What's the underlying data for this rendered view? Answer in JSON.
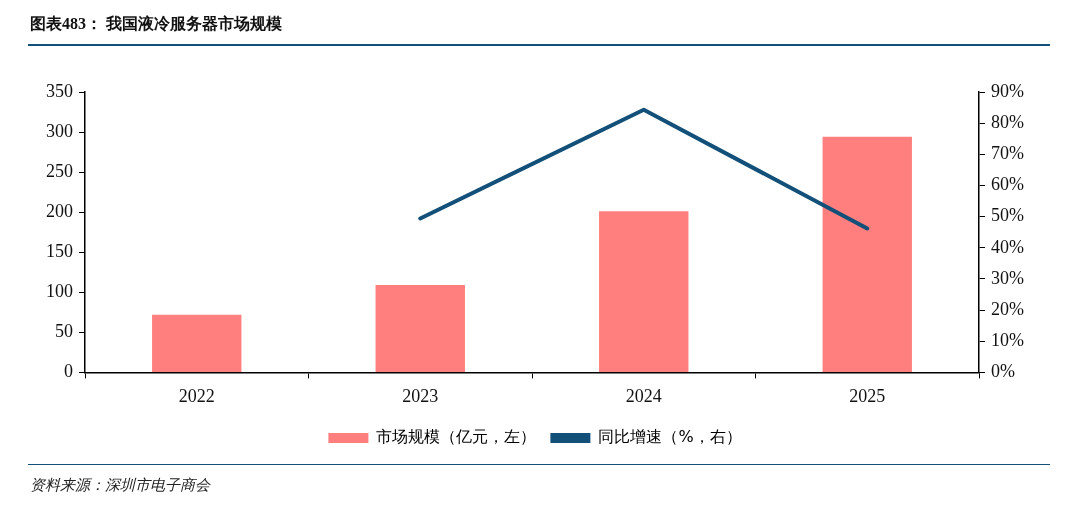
{
  "chart_data": {
    "type": "bar",
    "title": "图表483：  我国液冷服务器市场规模",
    "categories": [
      "2022",
      "2023",
      "2024",
      "2025"
    ],
    "series": [
      {
        "name": "市场规模（亿元，左）",
        "color": "#ff7f7f",
        "values": [
          72,
          109,
          201,
          294
        ]
      },
      {
        "name": "同比增速（%，右）",
        "type": "line",
        "axis": "y2",
        "color": "#12507a",
        "values": [
          null,
          49.4,
          84.3,
          46.2
        ]
      }
    ],
    "ylim": [
      0,
      350
    ],
    "yticks": [
      0,
      50,
      100,
      150,
      200,
      250,
      300,
      350
    ],
    "y2lim": [
      0,
      90
    ],
    "y2ticks": [
      {
        "value": 0,
        "label": "0%"
      },
      {
        "value": 10,
        "label": "10%"
      },
      {
        "value": 20,
        "label": "20%"
      },
      {
        "value": 30,
        "label": "30%"
      },
      {
        "value": 40,
        "label": "40%"
      },
      {
        "value": 50,
        "label": "50%"
      },
      {
        "value": 60,
        "label": "60%"
      },
      {
        "value": 70,
        "label": "70%"
      },
      {
        "value": 80,
        "label": "80%"
      },
      {
        "value": 90,
        "label": "90%"
      }
    ],
    "grid": false,
    "legend": "bottom",
    "marker": "none",
    "annotations": [
      "资料来源：深圳市电子商会"
    ]
  }
}
